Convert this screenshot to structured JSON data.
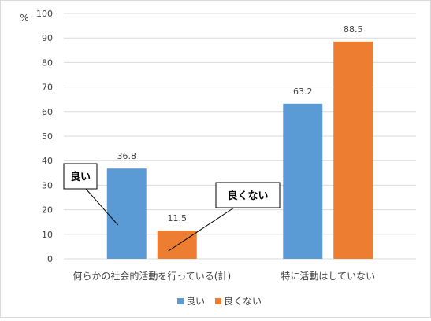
{
  "chart_data": {
    "type": "bar",
    "unit_label": "%",
    "categories": [
      "何らかの社会的活動を行っている(計)",
      "特に活動はしていない"
    ],
    "series": [
      {
        "name": "良い",
        "values": [
          36.8,
          63.2
        ],
        "color": "#5b9bd5"
      },
      {
        "name": "良くない",
        "values": [
          11.5,
          88.5
        ],
        "color": "#ed7d31"
      }
    ],
    "ylim": [
      0,
      100
    ],
    "yticks": [
      0,
      10,
      20,
      30,
      40,
      50,
      60,
      70,
      80,
      90,
      100
    ],
    "grid": true,
    "legend": "bottom",
    "callouts": [
      {
        "text": "良い",
        "series": 0,
        "category": 0
      },
      {
        "text": "良くない",
        "series": 1,
        "category": 0
      }
    ]
  }
}
